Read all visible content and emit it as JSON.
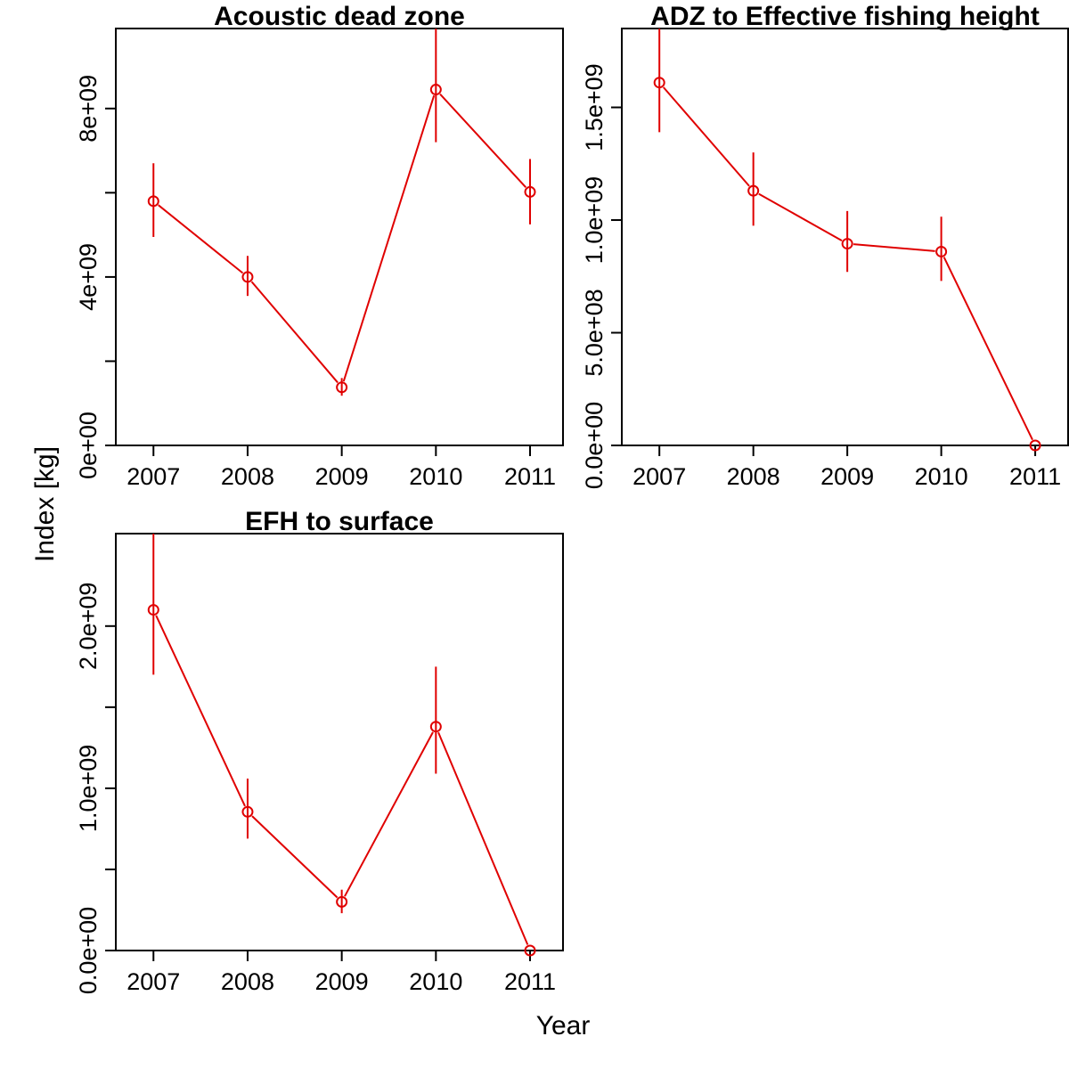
{
  "figure": {
    "xlabel": "Year",
    "ylabel": "Index [kg]",
    "series_color": "#e00000"
  },
  "chart_data": [
    {
      "type": "line",
      "title": "Acoustic dead zone",
      "x": [
        2007,
        2008,
        2009,
        2010,
        2011
      ],
      "values": [
        5800000000.0,
        4000000000.0,
        1380000000.0,
        8450000000.0,
        6020000000.0
      ],
      "error_low": [
        4950000000.0,
        3550000000.0,
        1180000000.0,
        7200000000.0,
        5250000000.0
      ],
      "error_high": [
        6700000000.0,
        4500000000.0,
        1600000000.0,
        9900000000.0,
        6800000000.0
      ],
      "ylim": [
        0,
        9900000000.0
      ],
      "yticks": [
        0,
        2000000000.0,
        4000000000.0,
        6000000000.0,
        8000000000.0
      ],
      "ytick_labels": [
        "0e+00",
        "",
        "4e+09",
        "",
        "8e+09"
      ],
      "xticks": [
        "2007",
        "2008",
        "2009",
        "2010",
        "2011"
      ]
    },
    {
      "type": "line",
      "title": "ADZ to Effective fishing height",
      "x": [
        2007,
        2008,
        2009,
        2010,
        2011
      ],
      "values": [
        1610000000.0,
        1130000000.0,
        895000000.0,
        860000000.0,
        0.0
      ],
      "error_low": [
        1390000000.0,
        975000000.0,
        770000000.0,
        730000000.0,
        0.0
      ],
      "error_high": [
        1850000000.0,
        1300000000.0,
        1040000000.0,
        1015000000.0,
        0.0
      ],
      "ylim": [
        0,
        1850000000.0
      ],
      "yticks": [
        0,
        500000000.0,
        1000000000.0,
        1500000000.0
      ],
      "ytick_labels": [
        "0.0e+00",
        "5.0e+08",
        "1.0e+09",
        "1.5e+09"
      ],
      "xticks": [
        "2007",
        "2008",
        "2009",
        "2010",
        "2011"
      ]
    },
    {
      "type": "line",
      "title": "EFH to surface",
      "x": [
        2007,
        2008,
        2009,
        2010,
        2011
      ],
      "values": [
        2100000000.0,
        855000000.0,
        300000000.0,
        1380000000.0,
        0.0
      ],
      "error_low": [
        1700000000.0,
        690000000.0,
        230000000.0,
        1090000000.0,
        0.0
      ],
      "error_high": [
        2570000000.0,
        1060000000.0,
        375000000.0,
        1750000000.0,
        0.0
      ],
      "ylim": [
        0,
        2570000000.0
      ],
      "yticks": [
        0,
        500000000.0,
        1000000000.0,
        1500000000.0,
        2000000000.0
      ],
      "ytick_labels": [
        "0.0e+00",
        "",
        "1.0e+09",
        "",
        "2.0e+09"
      ],
      "xticks": [
        "2007",
        "2008",
        "2009",
        "2010",
        "2011"
      ]
    }
  ]
}
